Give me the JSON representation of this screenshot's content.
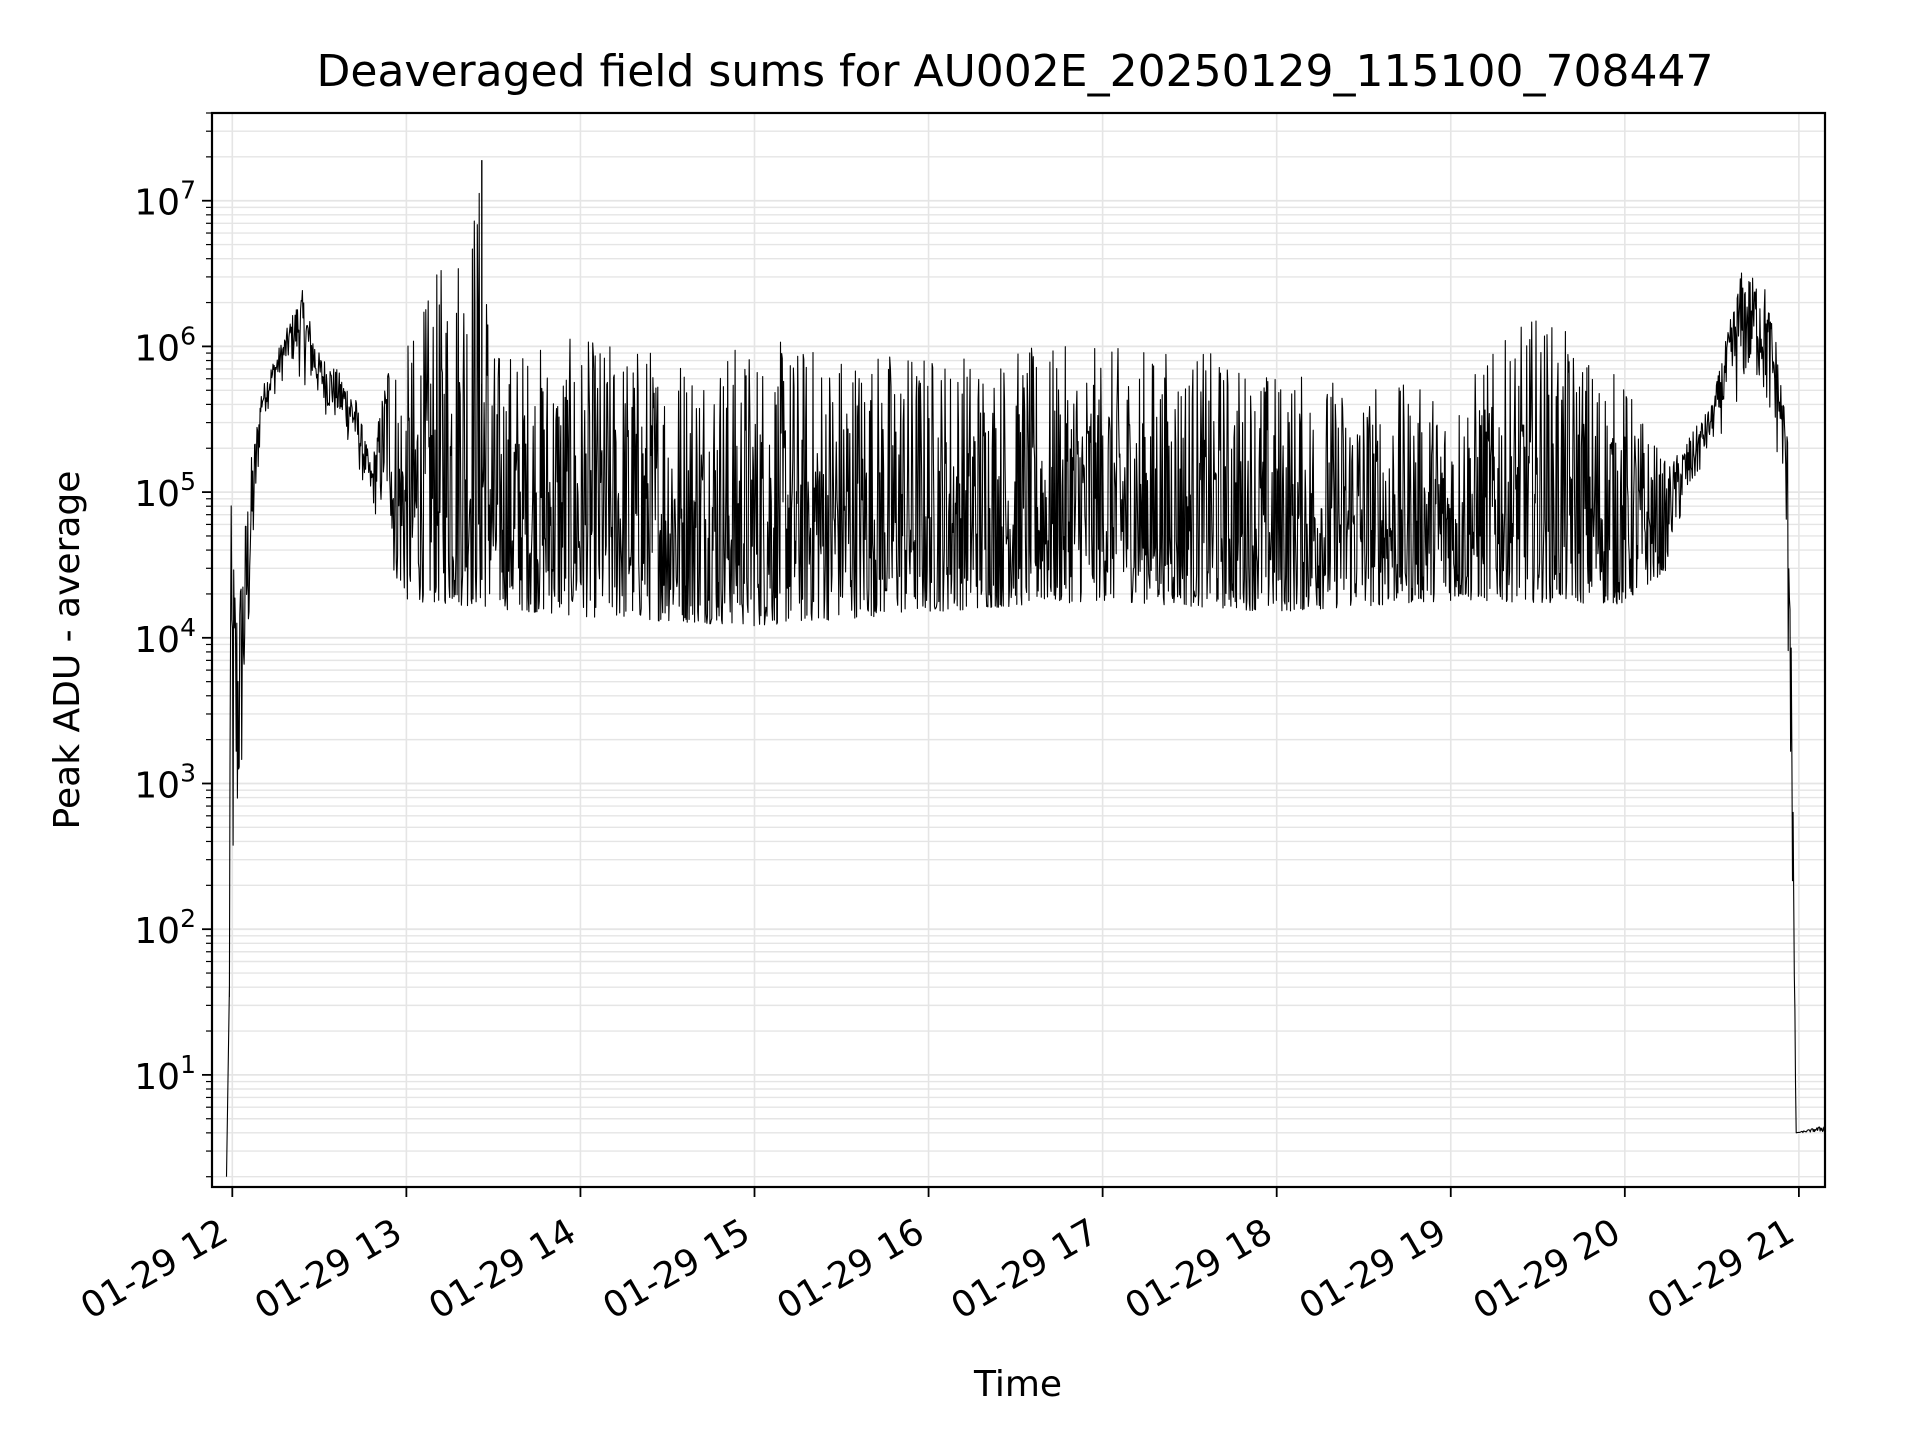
{
  "chart_data": {
    "type": "line",
    "title": "Deaveraged field sums for AU002E_20250129_115100_708447",
    "xlabel": "Time",
    "ylabel": "Peak ADU - average",
    "y_scale": "log",
    "ylim": [
      1.7,
      40000000
    ],
    "xlim": [
      "2025-01-29 11:53",
      "2025-01-29 21:09"
    ],
    "x_ticks": [
      "2025-01-29 12:00",
      "2025-01-29 13:00",
      "2025-01-29 14:00",
      "2025-01-29 15:00",
      "2025-01-29 16:00",
      "2025-01-29 17:00",
      "2025-01-29 18:00",
      "2025-01-29 19:00",
      "2025-01-29 20:00",
      "2025-01-29 21:00"
    ],
    "x_tick_labels": [
      "01-29 12",
      "01-29 13",
      "01-29 14",
      "01-29 15",
      "01-29 16",
      "01-29 17",
      "01-29 18",
      "01-29 19",
      "01-29 20",
      "01-29 21"
    ],
    "y_ticks": [
      10,
      100,
      1000,
      10000,
      100000,
      1000000,
      10000000
    ],
    "y_tick_labels": [
      {
        "base": "10",
        "exp": "1"
      },
      {
        "base": "10",
        "exp": "2"
      },
      {
        "base": "10",
        "exp": "3"
      },
      {
        "base": "10",
        "exp": "4"
      },
      {
        "base": "10",
        "exp": "5"
      },
      {
        "base": "10",
        "exp": "6"
      },
      {
        "base": "10",
        "exp": "7"
      }
    ],
    "grid": true,
    "line_color": "#000000",
    "grid_color": "#e5e5e5",
    "series": [
      {
        "envelope_upper": [
          [
            "2025-01-29 11:58",
            2
          ],
          [
            "2025-01-29 11:59",
            40
          ],
          [
            "2025-01-29 11:59",
            120000
          ],
          [
            "2025-01-29 12:02",
            20000
          ],
          [
            "2025-01-29 12:06",
            150000
          ],
          [
            "2025-01-29 12:10",
            500000
          ],
          [
            "2025-01-29 12:14",
            800000
          ],
          [
            "2025-01-29 12:18",
            1200000
          ],
          [
            "2025-01-29 12:24",
            2500000
          ],
          [
            "2025-01-29 12:30",
            900000
          ],
          [
            "2025-01-29 12:36",
            700000
          ],
          [
            "2025-01-29 12:42",
            500000
          ],
          [
            "2025-01-29 12:48",
            150000
          ],
          [
            "2025-01-29 12:54",
            1000000
          ],
          [
            "2025-01-29 13:00",
            1000000
          ],
          [
            "2025-01-29 13:26",
            19000000
          ],
          [
            "2025-01-29 13:30",
            1050000
          ],
          [
            "2025-01-29 14:00",
            1150000
          ],
          [
            "2025-01-29 14:30",
            1100000
          ],
          [
            "2025-01-29 15:00",
            1100000
          ],
          [
            "2025-01-29 15:30",
            1100000
          ],
          [
            "2025-01-29 16:00",
            1000000
          ],
          [
            "2025-01-29 16:30",
            1000000
          ],
          [
            "2025-01-29 17:00",
            1000000
          ],
          [
            "2025-01-29 17:30",
            1000000
          ],
          [
            "2025-01-29 18:00",
            700000
          ],
          [
            "2025-01-29 18:30",
            600000
          ],
          [
            "2025-01-29 19:00",
            500000
          ],
          [
            "2025-01-29 19:30",
            1800000
          ],
          [
            "2025-01-29 20:00",
            600000
          ],
          [
            "2025-01-29 20:15",
            150000
          ],
          [
            "2025-01-29 20:30",
            400000
          ],
          [
            "2025-01-29 20:40",
            3300000
          ],
          [
            "2025-01-29 20:48",
            2800000
          ],
          [
            "2025-01-29 20:52",
            1200000
          ],
          [
            "2025-01-29 20:57",
            200000
          ],
          [
            "2025-01-29 20:59",
            4
          ],
          [
            "2025-01-29 21:09",
            4.5
          ]
        ],
        "envelope_lower": [
          [
            "2025-01-29 12:00",
            20
          ],
          [
            "2025-01-29 12:10",
            300000
          ],
          [
            "2025-01-29 12:20",
            700000
          ],
          [
            "2025-01-29 12:40",
            200000
          ],
          [
            "2025-01-29 12:55",
            30000
          ],
          [
            "2025-01-29 13:00",
            18000
          ],
          [
            "2025-01-29 14:00",
            14000
          ],
          [
            "2025-01-29 15:00",
            12000
          ],
          [
            "2025-01-29 16:00",
            15000
          ],
          [
            "2025-01-29 17:00",
            18000
          ],
          [
            "2025-01-29 18:00",
            15000
          ],
          [
            "2025-01-29 19:00",
            18000
          ],
          [
            "2025-01-29 20:00",
            17000
          ],
          [
            "2025-01-29 20:15",
            30000
          ],
          [
            "2025-01-29 20:30",
            200000
          ],
          [
            "2025-01-29 20:45",
            500000
          ],
          [
            "2025-01-29 20:55",
            100000
          ],
          [
            "2025-01-29 20:59",
            4
          ],
          [
            "2025-01-29 21:09",
            4
          ]
        ]
      }
    ]
  }
}
